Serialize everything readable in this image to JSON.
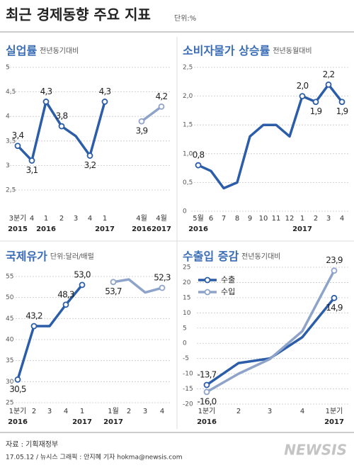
{
  "header": {
    "title": "최근 경제동향 주요 지표",
    "unit": "단위:%"
  },
  "chart_data": [
    {
      "type": "line",
      "title": "실업률",
      "subtitle": "전년동기대비",
      "categories": [
        "3분기",
        "4",
        "1",
        "2",
        "3",
        "4",
        "1",
        "4월",
        "4월"
      ],
      "category_years": [
        "2015",
        null,
        "2016",
        null,
        null,
        null,
        "2017",
        "2016",
        "2017"
      ],
      "series": [
        {
          "color": "#2b5da8",
          "values": [
            3.4,
            3.1,
            4.3,
            3.8,
            3.6,
            3.2,
            4.3,
            null,
            null
          ],
          "value_labels": [
            "3,4",
            "3,1",
            "4,3",
            "3,8",
            null,
            "3,2",
            "4,3",
            null,
            null
          ]
        },
        {
          "color": "#8ea3c9",
          "values": [
            null,
            null,
            null,
            null,
            null,
            null,
            null,
            3.9,
            4.2
          ],
          "value_labels": [
            null,
            null,
            null,
            null,
            null,
            null,
            null,
            "3,9",
            "4,2"
          ]
        }
      ],
      "ylim": [
        2.5,
        5
      ],
      "yticks": [
        {
          "value": 2.5,
          "label": "2,5"
        },
        3,
        {
          "value": 3.5,
          "label": "3,5"
        },
        4,
        {
          "value": 4.5,
          "label": "4,5"
        },
        5
      ],
      "grid": true
    },
    {
      "type": "line",
      "title": "소비자물가 상승률",
      "subtitle": "전년동월대비",
      "categories": [
        "5월",
        "6",
        "7",
        "8",
        "9",
        "10",
        "11",
        "12",
        "1",
        "2",
        "3",
        "4"
      ],
      "category_years": [
        "2016",
        null,
        null,
        null,
        null,
        null,
        null,
        null,
        "2017",
        null,
        null,
        null
      ],
      "series": [
        {
          "color": "#2b5da8",
          "values": [
            0.8,
            0.7,
            0.4,
            0.5,
            1.3,
            1.5,
            1.5,
            1.3,
            2.0,
            1.9,
            2.2,
            1.9
          ],
          "value_labels": [
            "0,8",
            null,
            null,
            null,
            null,
            null,
            null,
            null,
            "2,0",
            "1,9",
            "2,2",
            "1,9"
          ]
        }
      ],
      "ylim": [
        0,
        2.5
      ],
      "yticks": [
        0,
        {
          "value": 0.5,
          "label": "0,5"
        },
        {
          "value": 1.0,
          "label": "1,0"
        },
        {
          "value": 1.5,
          "label": "1,5"
        },
        {
          "value": 2.0,
          "label": "2,0"
        },
        {
          "value": 2.5,
          "label": "2,5"
        }
      ],
      "grid": true
    },
    {
      "type": "line",
      "title": "국제유가",
      "subtitle": "단위:달러/배럴",
      "categories": [
        "1분기",
        "2",
        "3",
        "4",
        "1",
        "1월",
        "2",
        "3",
        "4"
      ],
      "category_years": [
        "2016",
        null,
        null,
        null,
        "2017",
        "2017",
        null,
        null,
        null
      ],
      "series": [
        {
          "color": "#2b5da8",
          "values": [
            30.5,
            43.2,
            43.2,
            48.3,
            53.0,
            null,
            null,
            null,
            null
          ],
          "value_labels": [
            "30,5",
            "43,2",
            null,
            "48,3",
            "53,0",
            null,
            null,
            null,
            null
          ]
        },
        {
          "color": "#8ea3c9",
          "values": [
            null,
            null,
            null,
            null,
            null,
            53.7,
            54.3,
            51.2,
            52.3
          ],
          "value_labels": [
            null,
            null,
            null,
            null,
            null,
            "53,7",
            null,
            null,
            "52,3"
          ]
        }
      ],
      "ylim": [
        25,
        55
      ],
      "yticks": [
        25,
        30,
        35,
        40,
        45,
        50,
        55
      ],
      "grid": true
    },
    {
      "type": "line",
      "title": "수출입 증감",
      "subtitle": "전년동기대비",
      "categories": [
        "1분기",
        "2",
        "3",
        "4",
        "1분기"
      ],
      "category_years": [
        "2016",
        null,
        null,
        null,
        "2017"
      ],
      "series": [
        {
          "name": "수출",
          "color": "#2b5da8",
          "values": [
            -13.7,
            -6.5,
            -5.0,
            2.0,
            14.9
          ],
          "value_labels": [
            "-13,7",
            null,
            null,
            null,
            "14,9"
          ]
        },
        {
          "name": "수입",
          "color": "#8ea3c9",
          "values": [
            -16.0,
            -10.0,
            -5.2,
            4.0,
            23.9
          ],
          "value_labels": [
            "-16,0",
            null,
            null,
            null,
            "23,9"
          ]
        }
      ],
      "ylim": [
        -20,
        25
      ],
      "yticks": [
        -20,
        -15,
        -10,
        -5,
        0,
        5,
        10,
        15,
        20,
        25
      ],
      "grid": true,
      "legend": "upper left"
    }
  ],
  "footer": {
    "source": "자료 : 기획재정부",
    "credit": "17.05.12 / 뉴시스 그래픽 : 안지혜 기자 hokma@newsis.com",
    "logo": "NEWSIS"
  }
}
